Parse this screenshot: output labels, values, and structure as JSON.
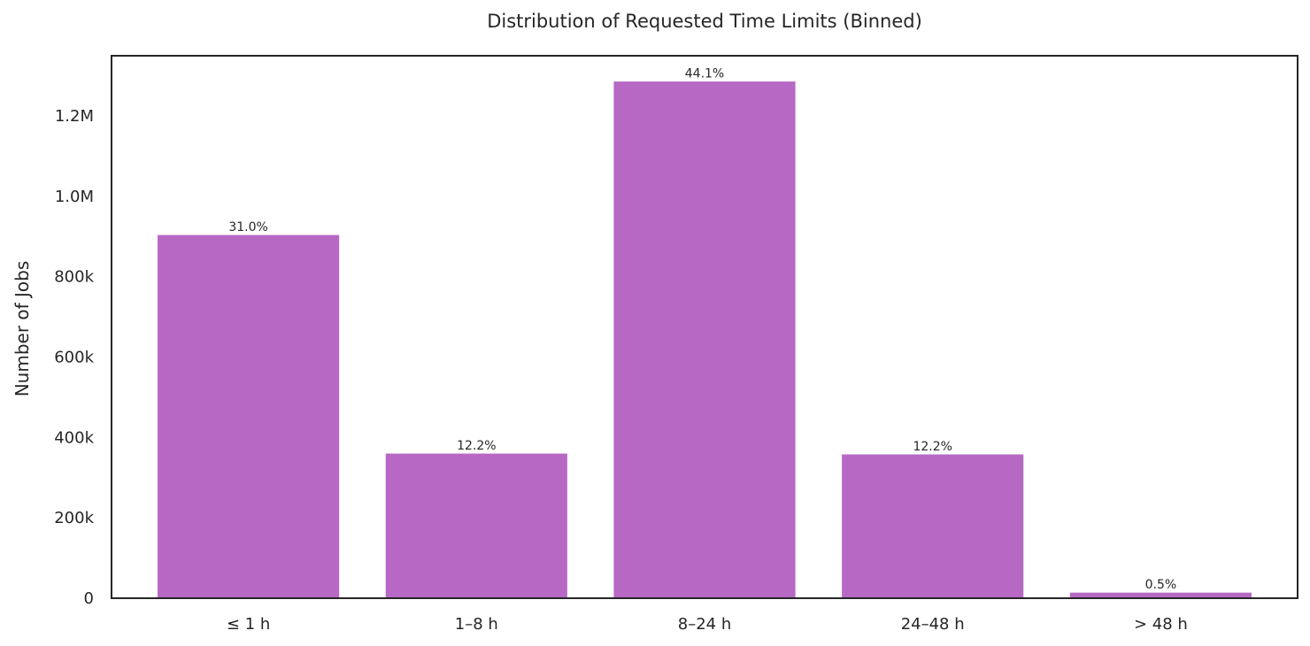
{
  "chart_data": {
    "type": "bar",
    "title": "Distribution of Requested Time Limits (Binned)",
    "xlabel": "",
    "ylabel": "Number of Jobs",
    "categories": [
      "≤ 1 h",
      "1–8 h",
      "8–24 h",
      "24–48 h",
      "> 48 h"
    ],
    "values": [
      905000,
      361000,
      1287000,
      359000,
      15000
    ],
    "data_labels": [
      "31.0%",
      "12.2%",
      "44.1%",
      "12.2%",
      "0.5%"
    ],
    "ylim": [
      0,
      1350000
    ],
    "yticks": [
      0,
      200000,
      400000,
      600000,
      800000,
      1000000,
      1200000
    ],
    "ytick_labels": [
      "0",
      "200k",
      "400k",
      "600k",
      "800k",
      "1.0M",
      "1.2M"
    ],
    "grid": false,
    "bar_color": "#b768c5"
  }
}
